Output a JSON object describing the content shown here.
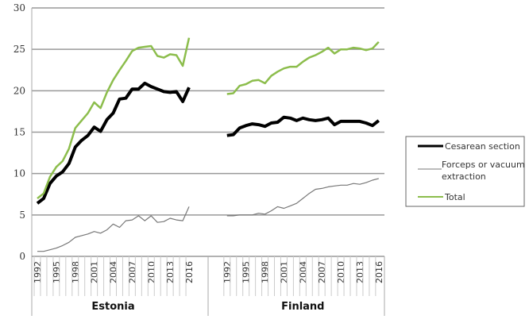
{
  "chart_data": {
    "type": "line",
    "title": "",
    "xlabel": "",
    "ylabel": "",
    "ylim": [
      0,
      30
    ],
    "yticks": [
      0,
      5,
      10,
      15,
      20,
      25,
      30
    ],
    "grid": true,
    "legend_position": "right",
    "groups": [
      {
        "name": "Estonia",
        "years": [
          1992,
          1993,
          1994,
          1995,
          1996,
          1997,
          1998,
          1999,
          2000,
          2001,
          2002,
          2003,
          2004,
          2005,
          2006,
          2007,
          2008,
          2009,
          2010,
          2011,
          2012,
          2013,
          2014,
          2015,
          2016
        ],
        "tick_labels": [
          "1992",
          "1995",
          "1998",
          "2001",
          "2004",
          "2007",
          "2010",
          "2013",
          "2016"
        ],
        "series": [
          {
            "name": "Cesarean section",
            "values": [
              6.4,
              7.0,
              8.8,
              9.7,
              10.2,
              11.2,
              13.2,
              14.0,
              14.6,
              15.6,
              15.1,
              16.5,
              17.3,
              19.0,
              19.1,
              20.2,
              20.2,
              20.9,
              20.5,
              20.2,
              19.9,
              19.8,
              19.9,
              18.7,
              20.4
            ]
          },
          {
            "name": "Forceps or vacuum extraction",
            "values": [
              0.6,
              0.6,
              0.8,
              1.0,
              1.3,
              1.7,
              2.3,
              2.5,
              2.7,
              3.0,
              2.8,
              3.2,
              3.9,
              3.5,
              4.3,
              4.4,
              4.9,
              4.3,
              4.9,
              4.1,
              4.2,
              4.6,
              4.4,
              4.3,
              6.0
            ]
          },
          {
            "name": "Total",
            "values": [
              7.0,
              7.6,
              9.6,
              10.8,
              11.5,
              13.0,
              15.5,
              16.4,
              17.3,
              18.6,
              17.9,
              19.8,
              21.3,
              22.5,
              23.6,
              24.8,
              25.2,
              25.3,
              25.4,
              24.2,
              24.0,
              24.4,
              24.3,
              23.0,
              26.4
            ]
          }
        ]
      },
      {
        "name": "Finland",
        "years": [
          1992,
          1993,
          1994,
          1995,
          1996,
          1997,
          1998,
          1999,
          2000,
          2001,
          2002,
          2003,
          2004,
          2005,
          2006,
          2007,
          2008,
          2009,
          2010,
          2011,
          2012,
          2013,
          2014,
          2015,
          2016
        ],
        "tick_labels": [
          "1992",
          "1995",
          "1998",
          "2001",
          "2004",
          "2007",
          "2010",
          "2013",
          "2016"
        ],
        "series": [
          {
            "name": "Cesarean section",
            "values": [
              14.6,
              14.7,
              15.5,
              15.8,
              16.0,
              15.9,
              15.7,
              16.1,
              16.2,
              16.8,
              16.7,
              16.4,
              16.7,
              16.5,
              16.4,
              16.5,
              16.7,
              15.9,
              16.3,
              16.3,
              16.3,
              16.3,
              16.1,
              15.8,
              16.4
            ]
          },
          {
            "name": "Forceps or vacuum extraction",
            "values": [
              4.9,
              4.9,
              5.0,
              5.0,
              5.0,
              5.2,
              5.1,
              5.5,
              6.0,
              5.8,
              6.1,
              6.4,
              7.0,
              7.6,
              8.1,
              8.2,
              8.4,
              8.5,
              8.6,
              8.6,
              8.8,
              8.7,
              8.9,
              9.2,
              9.4
            ]
          },
          {
            "name": "Total",
            "values": [
              19.6,
              19.7,
              20.6,
              20.8,
              21.2,
              21.3,
              20.9,
              21.8,
              22.3,
              22.7,
              22.9,
              22.9,
              23.5,
              24.0,
              24.3,
              24.7,
              25.2,
              24.5,
              25.0,
              25.0,
              25.2,
              25.1,
              24.9,
              25.1,
              25.9
            ]
          }
        ]
      }
    ],
    "legend": [
      {
        "name": "Cesarean section",
        "color": "#000000"
      },
      {
        "name": "Forceps or vacuum extraction",
        "line1": "Forceps or vacuum",
        "line2": "extraction",
        "color": "#777777"
      },
      {
        "name": "Total",
        "color": "#8cbd4c"
      }
    ]
  }
}
